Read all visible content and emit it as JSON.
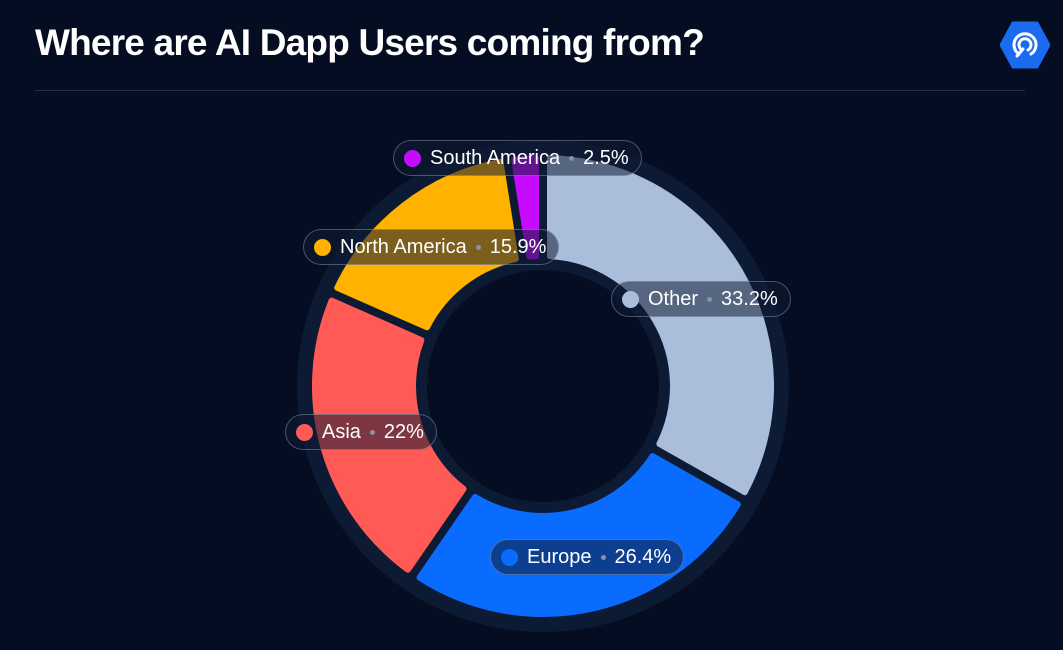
{
  "header": {
    "title": "Where are AI Dapp Users coming from?",
    "logo_icon": "hexagon-signal-logo-icon",
    "logo_color": "#1a6bf0"
  },
  "chart_data": {
    "type": "pie",
    "variant": "donut",
    "title": "Where are AI Dapp Users coming from?",
    "unit": "%",
    "categories": [
      "Other",
      "Europe",
      "Asia",
      "North America",
      "South America"
    ],
    "values": [
      33.2,
      26.4,
      22,
      15.9,
      2.5
    ],
    "value_labels": [
      "33.2%",
      "26.4%",
      "22%",
      "15.9%",
      "2.5%"
    ],
    "colors": [
      "#aabedb",
      "#0a6bff",
      "#ff5a55",
      "#ffb200",
      "#c60cff"
    ],
    "legend": "inline labels on slices"
  }
}
